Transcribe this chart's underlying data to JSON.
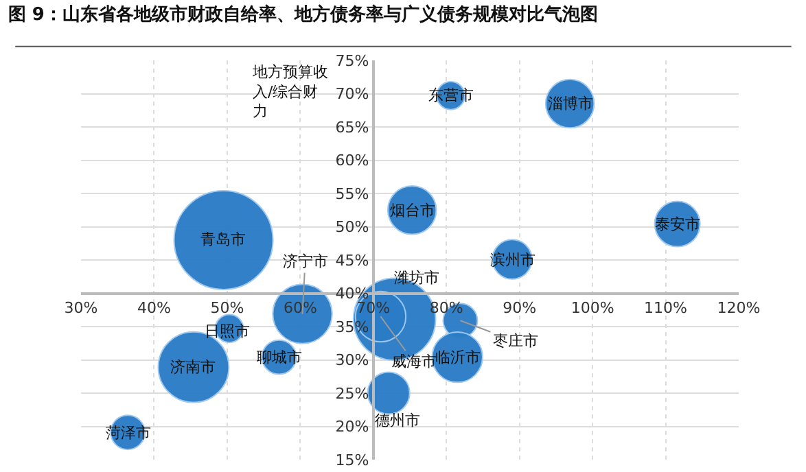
{
  "chart_data": {
    "type": "bubble",
    "title": "图 9：山东省各地级市财政自给率、地方债务率与广义债务规模对比气泡图",
    "ylabel": "地方预算收入/综合财力",
    "x": [
      49.5,
      60.3,
      50.3,
      45.4,
      57.1,
      36.4,
      72.9,
      71,
      72.1,
      81.9,
      81.5,
      80.6,
      96.9,
      75.3,
      111.6,
      89
    ],
    "series": [
      {
        "color": "#2b7cc7",
        "values": [
          48,
          36.9,
          34.7,
          28.9,
          30.4,
          19.1,
          36.1,
          36.5,
          25,
          35.9,
          30.4,
          69.7,
          68.5,
          52.5,
          50.4,
          45.1
        ],
        "sizes": [
          1,
          0.36,
          0.08,
          0.51,
          0.12,
          0.12,
          0.69,
          0.26,
          0.18,
          0.12,
          0.26,
          0.08,
          0.24,
          0.24,
          0.21,
          0.16
        ]
      }
    ],
    "annotations": [
      {
        "text": "青岛市",
        "x": 49.5,
        "y": 48
      },
      {
        "text": "济宁市",
        "x": 60.3,
        "y": 36.9
      },
      {
        "text": "日照市",
        "x": 50.3,
        "y": 34.7
      },
      {
        "text": "济南市",
        "x": 45.4,
        "y": 28.9
      },
      {
        "text": "聊城市",
        "x": 57.1,
        "y": 30.4
      },
      {
        "text": "菏泽市",
        "x": 36.4,
        "y": 19.1
      },
      {
        "text": "潍坊市",
        "x": 72.9,
        "y": 36.1
      },
      {
        "text": "威海市",
        "x": 71,
        "y": 36.5
      },
      {
        "text": "德州市",
        "x": 72.1,
        "y": 25
      },
      {
        "text": "枣庄市",
        "x": 81.9,
        "y": 35.9
      },
      {
        "text": "临沂市",
        "x": 81.5,
        "y": 30.4
      },
      {
        "text": "东营市",
        "x": 80.6,
        "y": 69.7
      },
      {
        "text": "淄博市",
        "x": 96.9,
        "y": 68.5
      },
      {
        "text": "烟台市",
        "x": 75.3,
        "y": 52.5
      },
      {
        "text": "泰安市",
        "x": 111.6,
        "y": 50.4
      },
      {
        "text": "滨州市",
        "x": 89,
        "y": 45.1
      }
    ],
    "xlim": [
      30,
      120
    ],
    "xticks": [
      {
        "value": 30,
        "label": "30%"
      },
      {
        "value": 40,
        "label": "40%"
      },
      {
        "value": 50,
        "label": "50%"
      },
      {
        "value": 60,
        "label": "60%"
      },
      {
        "value": 70,
        "label": "70%"
      },
      {
        "value": 80,
        "label": "80%"
      },
      {
        "value": 90,
        "label": "90%"
      },
      {
        "value": 100,
        "label": "100%"
      },
      {
        "value": 110,
        "label": "110%"
      },
      {
        "value": 120,
        "label": "120%"
      }
    ],
    "ylim": [
      15,
      75
    ],
    "yticks": [
      {
        "value": 15,
        "label": "15%"
      },
      {
        "value": 20,
        "label": "20%"
      },
      {
        "value": 25,
        "label": "25%"
      },
      {
        "value": 30,
        "label": "30%"
      },
      {
        "value": 35,
        "label": "35%"
      },
      {
        "value": 40,
        "label": "40%"
      },
      {
        "value": 45,
        "label": "45%"
      },
      {
        "value": 50,
        "label": "50%"
      },
      {
        "value": 55,
        "label": "55%"
      },
      {
        "value": 60,
        "label": "60%"
      },
      {
        "value": 65,
        "label": "65%"
      },
      {
        "value": 70,
        "label": "70%"
      },
      {
        "value": 75,
        "label": "75%"
      }
    ],
    "grid": true,
    "marker": "circle"
  }
}
